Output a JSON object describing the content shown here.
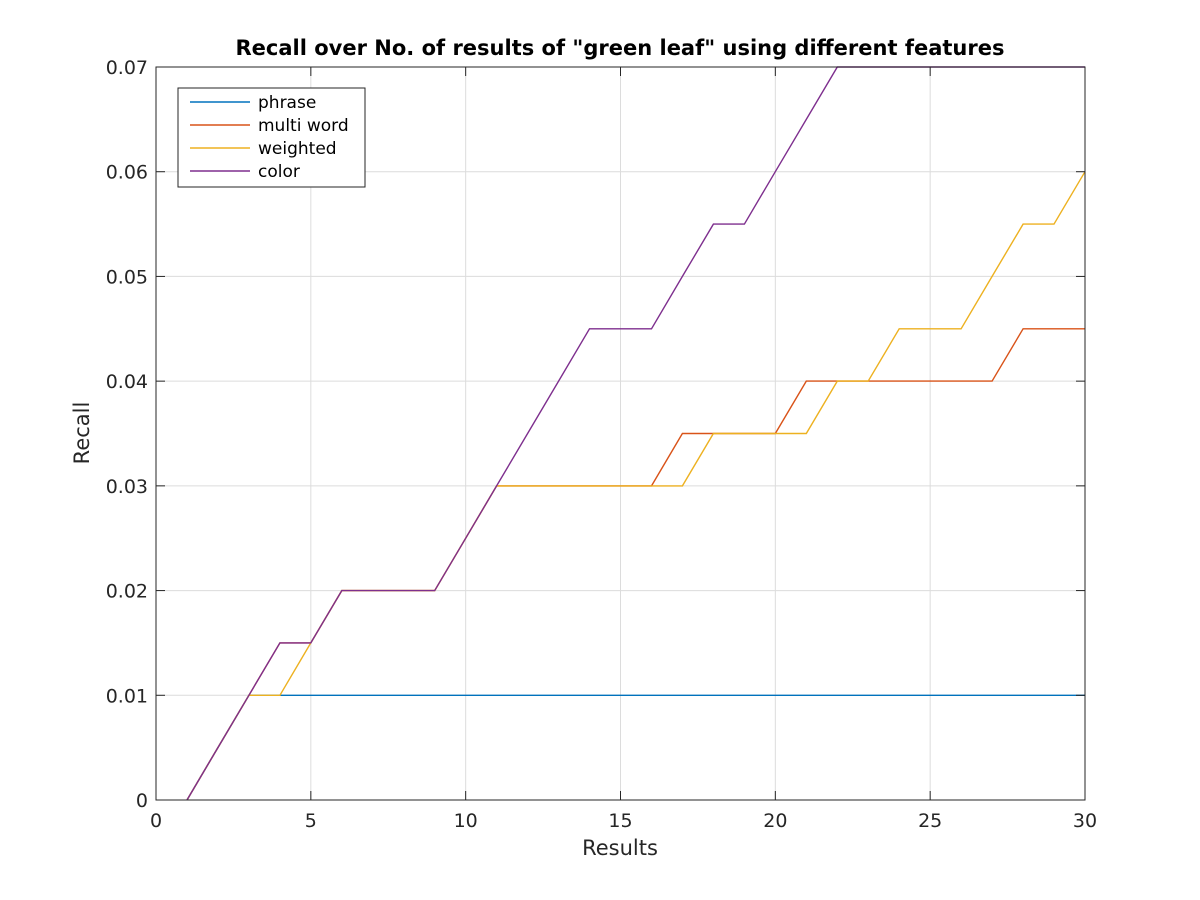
{
  "chart_data": {
    "type": "line",
    "title": "Recall over No. of results of \"green leaf\" using different features",
    "xlabel": "Results",
    "ylabel": "Recall",
    "xlim": [
      0,
      30
    ],
    "ylim": [
      0,
      0.07
    ],
    "xticks": [
      0,
      5,
      10,
      15,
      20,
      25,
      30
    ],
    "yticks": [
      0,
      0.01,
      0.02,
      0.03,
      0.04,
      0.05,
      0.06,
      0.07
    ],
    "xtick_labels": [
      "0",
      "5",
      "10",
      "15",
      "20",
      "25",
      "30"
    ],
    "ytick_labels": [
      "0",
      "0.01",
      "0.02",
      "0.03",
      "0.04",
      "0.05",
      "0.06",
      "0.07"
    ],
    "grid": true,
    "legend_position": "top-left",
    "x": [
      1,
      2,
      3,
      4,
      5,
      6,
      7,
      8,
      9,
      10,
      11,
      12,
      13,
      14,
      15,
      16,
      17,
      18,
      19,
      20,
      21,
      22,
      23,
      24,
      25,
      26,
      27,
      28,
      29,
      30
    ],
    "series": [
      {
        "name": "phrase",
        "color": "#0072BD",
        "values": [
          0,
          0.005,
          0.01,
          0.01,
          0.01,
          0.01,
          0.01,
          0.01,
          0.01,
          0.01,
          0.01,
          0.01,
          0.01,
          0.01,
          0.01,
          0.01,
          0.01,
          0.01,
          0.01,
          0.01,
          0.01,
          0.01,
          0.01,
          0.01,
          0.01,
          0.01,
          0.01,
          0.01,
          0.01,
          0.01
        ]
      },
      {
        "name": "multi word",
        "color": "#D95319",
        "values": [
          0,
          0.005,
          0.01,
          0.015,
          0.015,
          0.02,
          0.02,
          0.02,
          0.02,
          0.025,
          0.03,
          0.03,
          0.03,
          0.03,
          0.03,
          0.03,
          0.035,
          0.035,
          0.035,
          0.035,
          0.04,
          0.04,
          0.04,
          0.04,
          0.04,
          0.04,
          0.04,
          0.045,
          0.045,
          0.045
        ]
      },
      {
        "name": "weighted",
        "color": "#EDB120",
        "values": [
          0,
          0.005,
          0.01,
          0.01,
          0.015,
          0.02,
          0.02,
          0.02,
          0.02,
          0.025,
          0.03,
          0.03,
          0.03,
          0.03,
          0.03,
          0.03,
          0.03,
          0.035,
          0.035,
          0.035,
          0.035,
          0.04,
          0.04,
          0.045,
          0.045,
          0.045,
          0.05,
          0.055,
          0.055,
          0.06
        ]
      },
      {
        "name": "color",
        "color": "#7E2F8E",
        "values": [
          0,
          0.005,
          0.01,
          0.015,
          0.015,
          0.02,
          0.02,
          0.02,
          0.02,
          0.025,
          0.03,
          0.035,
          0.04,
          0.045,
          0.045,
          0.045,
          0.05,
          0.055,
          0.055,
          0.06,
          0.065,
          0.07,
          0.07,
          0.07,
          0.07,
          0.07,
          0.07,
          0.07,
          0.07,
          0.07
        ]
      }
    ]
  }
}
